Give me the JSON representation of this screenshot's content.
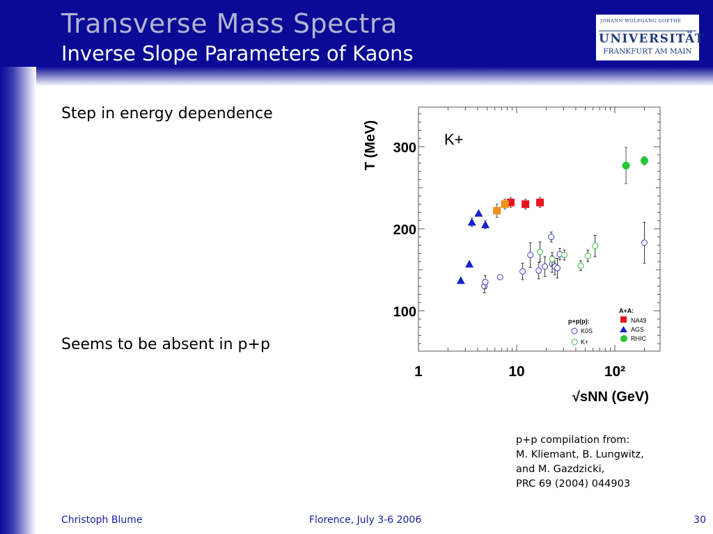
{
  "header": {
    "title": "Transverse Mass Spectra",
    "subtitle": "Inverse Slope Parameters of Kaons"
  },
  "logo": {
    "line1": "JOHANN WOLFGANG GOETHE",
    "line2": "UNIVERSITÄT",
    "line3": "FRANKFURT AM MAIN"
  },
  "bullets": {
    "first": "Step in energy dependence",
    "second": "Seems to be absent in p+p"
  },
  "note": {
    "line1": "p+p compilation from:",
    "line2": "M. Kliemant, B. Lungwitz,",
    "line3": "and M. Gazdzicki,",
    "line4": "PRC 69 (2004) 044903"
  },
  "footer": {
    "author": "Christoph Blume",
    "venue": "Florence, July 3-6 2006",
    "page": "30"
  },
  "colors": {
    "header_bg": "#0a0a96",
    "na49": "#e8141e",
    "na49_low": "#f0901e",
    "ags": "#1420d2",
    "rhic": "#23c832",
    "pp_k0s": "#3c3cd2",
    "pp_kplus": "#3cbe3c"
  },
  "chart_data": {
    "type": "scatter",
    "xlabel": "√sNN (GeV)",
    "ylabel": "T (MeV)",
    "xscale": "log",
    "xlim": [
      1,
      250
    ],
    "ylim": [
      52,
      345
    ],
    "xticks": [
      "1",
      "10",
      "10²"
    ],
    "yticks": [
      "100",
      "200",
      "300"
    ],
    "annotation": "K+",
    "grid": false,
    "legend_aa_title": "A+A:",
    "legend_pp_title": "p+p(p):",
    "series": [
      {
        "name": "NA49",
        "marker": "square",
        "color": "#e8141e",
        "group": "A+A",
        "points": [
          {
            "x": 8.7,
            "y": 232,
            "e": 6
          },
          {
            "x": 12.3,
            "y": 230,
            "e": 6
          },
          {
            "x": 17.3,
            "y": 232,
            "e": 6
          }
        ]
      },
      {
        "name": "",
        "marker": "square",
        "color": "#f0901e",
        "group": "A+A",
        "points": [
          {
            "x": 6.3,
            "y": 222,
            "e": 8
          },
          {
            "x": 7.6,
            "y": 230,
            "e": 6
          }
        ]
      },
      {
        "name": "AGS",
        "marker": "triangle",
        "color": "#1420d2",
        "group": "A+A",
        "points": [
          {
            "x": 2.7,
            "y": 137,
            "e": 0
          },
          {
            "x": 3.3,
            "y": 157,
            "e": 0
          },
          {
            "x": 3.5,
            "y": 208,
            "e": 5
          },
          {
            "x": 4.1,
            "y": 219,
            "e": 0
          },
          {
            "x": 4.8,
            "y": 205,
            "e": 5
          }
        ]
      },
      {
        "name": "RHIC",
        "marker": "circle",
        "color": "#23c832",
        "group": "A+A",
        "points": [
          {
            "x": 130,
            "y": 277,
            "e": 22
          },
          {
            "x": 200,
            "y": 283,
            "e": 5
          }
        ]
      },
      {
        "name": "K0S",
        "marker": "open-circle",
        "color": "#3c3cd2",
        "group": "p+p",
        "points": [
          {
            "x": 4.7,
            "y": 130,
            "e": 8
          },
          {
            "x": 4.8,
            "y": 135,
            "e": 8
          },
          {
            "x": 6.8,
            "y": 141,
            "e": 0
          },
          {
            "x": 11.5,
            "y": 148,
            "e": 10
          },
          {
            "x": 13.8,
            "y": 168,
            "e": 15
          },
          {
            "x": 16.8,
            "y": 149,
            "e": 10
          },
          {
            "x": 19.4,
            "y": 154,
            "e": 12
          },
          {
            "x": 22.5,
            "y": 190,
            "e": 6
          },
          {
            "x": 23,
            "y": 157,
            "e": 10
          },
          {
            "x": 24.5,
            "y": 154,
            "e": 10
          },
          {
            "x": 26,
            "y": 152,
            "e": 12
          },
          {
            "x": 27.5,
            "y": 169,
            "e": 7
          },
          {
            "x": 200,
            "y": 183,
            "e": 25
          }
        ]
      },
      {
        "name": "K+",
        "marker": "open-circle",
        "color": "#3cbe3c",
        "group": "p+p",
        "points": [
          {
            "x": 17.3,
            "y": 172,
            "e": 12
          },
          {
            "x": 23,
            "y": 163,
            "e": 8
          },
          {
            "x": 30.6,
            "y": 168,
            "e": 6
          },
          {
            "x": 45,
            "y": 155,
            "e": 6
          },
          {
            "x": 53,
            "y": 167,
            "e": 7
          },
          {
            "x": 63,
            "y": 179,
            "e": 13
          }
        ]
      }
    ]
  }
}
